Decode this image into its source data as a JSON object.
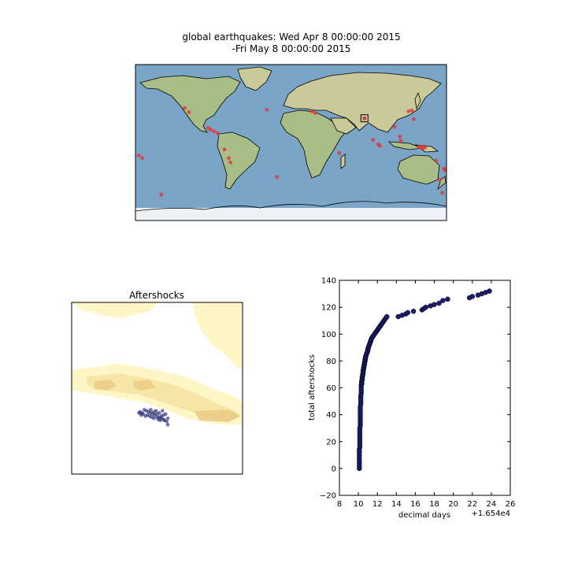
{
  "figure": {
    "title_line1": "global earthquakes: Wed Apr  8 00:00:00 2015",
    "title_line2": "-Fri May  8 00:00:00 2015"
  },
  "colors": {
    "ocean": "#7aa5c6",
    "land": "#c9c99a",
    "land_green": "#a9bd86",
    "ice": "#eef2f6",
    "quake": "#e03a3a",
    "aftershock": "#1a1a6e",
    "density_light": "#fff6c7",
    "density_mid": "#f6e7a8",
    "density_dark": "#ecd089"
  },
  "chart_data": [
    {
      "type": "scatter",
      "title": "global earthquakes: Wed Apr  8 00:00:00 2015 -Fri May  8 00:00:00 2015",
      "description_points": "epicenters in lon/lat",
      "xlim": [
        -180,
        180
      ],
      "ylim": [
        -90,
        90
      ],
      "points": [
        [
          -123,
          40
        ],
        [
          -118,
          35
        ],
        [
          -96,
          17
        ],
        [
          -93,
          15
        ],
        [
          -89,
          13
        ],
        [
          -85,
          11
        ],
        [
          -77,
          -8
        ],
        [
          -72,
          -18
        ],
        [
          -70,
          -23
        ],
        [
          -176,
          -15
        ],
        [
          -172,
          -18
        ],
        [
          -28,
          38
        ],
        [
          -16,
          -40
        ],
        [
          24,
          36
        ],
        [
          28,
          34
        ],
        [
          56,
          -12
        ],
        [
          85,
          28
        ],
        [
          95,
          3
        ],
        [
          101,
          -2
        ],
        [
          103,
          -4
        ],
        [
          120,
          18
        ],
        [
          126,
          7
        ],
        [
          127,
          2
        ],
        [
          140,
          37
        ],
        [
          142,
          27
        ],
        [
          148,
          -5
        ],
        [
          150,
          -5.5
        ],
        [
          151,
          -6
        ],
        [
          152,
          -5
        ],
        [
          152.5,
          -4.5
        ],
        [
          153,
          -6
        ],
        [
          155,
          -6
        ],
        [
          168,
          -21
        ],
        [
          177,
          -30
        ],
        [
          178,
          -32
        ],
        [
          172,
          -43
        ],
        [
          175,
          -58
        ],
        [
          -150,
          -60
        ],
        [
          136,
          36
        ]
      ],
      "highlight_box": [
        85,
        28
      ]
    },
    {
      "type": "scatter",
      "title": "Aftershocks",
      "description_points": "aftershock locations over a density map (lon/lat)",
      "xlim": [
        82,
        90
      ],
      "ylim": [
        25,
        33
      ],
      "points": [
        [
          85.2,
          27.9
        ],
        [
          85.3,
          27.85
        ],
        [
          85.4,
          28.0
        ],
        [
          85.5,
          27.95
        ],
        [
          85.35,
          27.8
        ],
        [
          85.6,
          27.9
        ],
        [
          85.7,
          27.85
        ],
        [
          85.8,
          27.8
        ],
        [
          85.9,
          27.75
        ],
        [
          86.0,
          27.8
        ],
        [
          86.1,
          27.85
        ],
        [
          86.2,
          27.7
        ],
        [
          86.3,
          27.75
        ],
        [
          86.4,
          27.8
        ],
        [
          86.2,
          27.6
        ],
        [
          86.0,
          27.65
        ],
        [
          85.55,
          27.75
        ],
        [
          85.45,
          27.7
        ],
        [
          85.65,
          27.7
        ],
        [
          85.75,
          27.65
        ],
        [
          85.85,
          27.6
        ],
        [
          86.05,
          27.55
        ],
        [
          86.15,
          27.5
        ],
        [
          86.3,
          27.55
        ],
        [
          86.5,
          27.6
        ],
        [
          85.25,
          27.75
        ],
        [
          85.15,
          27.85
        ],
        [
          85.95,
          27.95
        ],
        [
          86.25,
          27.95
        ],
        [
          86.35,
          27.5
        ],
        [
          86.45,
          27.45
        ],
        [
          86.5,
          27.3
        ],
        [
          85.7,
          28.0
        ],
        [
          85.85,
          27.9
        ],
        [
          86.1,
          27.65
        ]
      ]
    },
    {
      "type": "scatter",
      "title": "",
      "xlabel": "decimal days",
      "ylabel": "total aftershocks",
      "offset_label": "+1.654e4",
      "xlim": [
        8,
        26
      ],
      "ylim": [
        -20,
        140
      ],
      "xticks": [
        8,
        10,
        12,
        14,
        16,
        18,
        20,
        22,
        24,
        26
      ],
      "yticks": [
        -20,
        0,
        20,
        40,
        60,
        80,
        100,
        120,
        140
      ],
      "x": [
        10.1,
        10.1,
        10.1,
        10.1,
        10.1,
        10.1,
        10.1,
        10.1,
        10.15,
        10.15,
        10.15,
        10.15,
        10.15,
        10.15,
        10.15,
        10.15,
        10.2,
        10.2,
        10.2,
        10.2,
        10.2,
        10.2,
        10.2,
        10.2,
        10.25,
        10.25,
        10.25,
        10.25,
        10.3,
        10.3,
        10.3,
        10.3,
        10.35,
        10.35,
        10.35,
        10.4,
        10.4,
        10.4,
        10.45,
        10.45,
        10.5,
        10.5,
        10.5,
        10.55,
        10.55,
        10.6,
        10.6,
        10.65,
        10.65,
        10.7,
        10.7,
        10.75,
        10.75,
        10.8,
        10.85,
        10.9,
        10.95,
        11.0,
        11.0,
        11.05,
        11.1,
        11.15,
        11.2,
        11.25,
        11.3,
        11.35,
        11.4,
        11.5,
        11.6,
        11.7,
        11.8,
        11.9,
        12.0,
        12.1,
        12.2,
        12.3,
        12.4,
        12.5,
        12.6,
        12.7,
        12.8,
        12.9,
        13.0,
        14.2,
        14.6,
        15.0,
        15.2,
        15.8,
        16.7,
        16.9,
        17.1,
        17.6,
        18.0,
        18.5,
        18.9,
        19.4,
        21.7,
        22.0,
        22.6,
        23.0,
        23.4,
        23.8
      ],
      "y": [
        0,
        2,
        4,
        6,
        8,
        10,
        12,
        14,
        16,
        18,
        20,
        22,
        24,
        26,
        28,
        30,
        32,
        34,
        36,
        38,
        40,
        42,
        44,
        46,
        48,
        50,
        52,
        54,
        56,
        58,
        60,
        62,
        63,
        64,
        65,
        66,
        67,
        68,
        69,
        70,
        71,
        72,
        73,
        74,
        75,
        76,
        77,
        78,
        79,
        80,
        81,
        82,
        83,
        84,
        85,
        86,
        87,
        88,
        89,
        90,
        91,
        92,
        93,
        94,
        95,
        96,
        97,
        98,
        99,
        100,
        101,
        102,
        103,
        104,
        105,
        106,
        107,
        108,
        109,
        110,
        111,
        112,
        113,
        113,
        114,
        115,
        116,
        117,
        118,
        119,
        120,
        121,
        122,
        123,
        125,
        126,
        127,
        128,
        129,
        130,
        131,
        132
      ]
    }
  ]
}
